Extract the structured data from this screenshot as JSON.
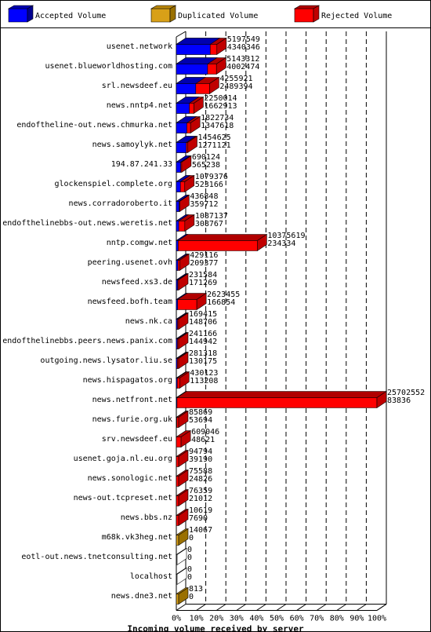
{
  "chart_data": {
    "type": "bar",
    "xlabel": "Incoming volume received by server",
    "legend": [
      "Accepted Volume",
      "Duplicated Volume",
      "Rejected Volume"
    ],
    "colors": {
      "accepted": "#0000ff",
      "accepted_top": "#0000b0",
      "accepted_side": "#000090",
      "duplicated": "#d8a018",
      "duplicated_top": "#b8860b",
      "duplicated_side": "#9a7000",
      "rejected": "#ff0000",
      "rejected_top": "#b00000",
      "rejected_side": "#c00000"
    },
    "xticks": [
      "0%",
      "10%",
      "20%",
      "30%",
      "40%",
      "50%",
      "60%",
      "70%",
      "80%",
      "90%",
      "100%"
    ],
    "xlim": [
      0,
      25702552
    ],
    "rows": [
      {
        "server": "usenet.network",
        "kind": "accepted",
        "total": 5197549,
        "accepted": 4340346,
        "line1": "5197549",
        "line2": "4340346"
      },
      {
        "server": "usenet.blueworldhosting.com",
        "kind": "accepted",
        "total": 5143312,
        "accepted": 4002474,
        "line1": "5143312",
        "line2": "4002474"
      },
      {
        "server": "srl.newsdeef.eu",
        "kind": "accepted",
        "total": 4255921,
        "accepted": 2489394,
        "line1": "4255921",
        "line2": "2489394"
      },
      {
        "server": "news.nntp4.net",
        "kind": "accepted",
        "total": 2250014,
        "accepted": 1662913,
        "line1": "2250014",
        "line2": "1662913"
      },
      {
        "server": "endoftheline-out.news.chmurka.net",
        "kind": "accepted",
        "total": 1822734,
        "accepted": 1347618,
        "line1": "1822734",
        "line2": "1347618"
      },
      {
        "server": "news.samoylyk.net",
        "kind": "accepted",
        "total": 1454625,
        "accepted": 1271121,
        "line1": "1454625",
        "line2": "1271121"
      },
      {
        "server": "194.87.241.33",
        "kind": "accepted",
        "total": 690124,
        "accepted": 565238,
        "line1": "690124",
        "line2": "565238"
      },
      {
        "server": "glockenspiel.complete.org",
        "kind": "accepted",
        "total": 1079376,
        "accepted": 523166,
        "line1": "1079376",
        "line2": "523166"
      },
      {
        "server": "news.corradoroberto.it",
        "kind": "accepted",
        "total": 436848,
        "accepted": 359712,
        "line1": "436848",
        "line2": "359712"
      },
      {
        "server": "endofthelinebbs-out.news.weretis.net",
        "kind": "accepted",
        "total": 1087137,
        "accepted": 308767,
        "line1": "1087137",
        "line2": "308767"
      },
      {
        "server": "nntp.comgw.net",
        "kind": "accepted",
        "total": 10375619,
        "accepted": 234334,
        "line1": "10375619",
        "line2": "234334"
      },
      {
        "server": "peering.usenet.ovh",
        "kind": "accepted",
        "total": 429116,
        "accepted": 209377,
        "line1": "429116",
        "line2": "209377"
      },
      {
        "server": "newsfeed.xs3.de",
        "kind": "accepted",
        "total": 231584,
        "accepted": 171269,
        "line1": "231584",
        "line2": "171269"
      },
      {
        "server": "newsfeed.bofh.team",
        "kind": "accepted",
        "total": 2623455,
        "accepted": 166854,
        "line1": "2623455",
        "line2": "166854"
      },
      {
        "server": "news.nk.ca",
        "kind": "accepted",
        "total": 169415,
        "accepted": 148706,
        "line1": "169415",
        "line2": "148706"
      },
      {
        "server": "endofthelinebbs.peers.news.panix.com",
        "kind": "accepted",
        "total": 241166,
        "accepted": 144942,
        "line1": "241166",
        "line2": "144942"
      },
      {
        "server": "outgoing.news.lysator.liu.se",
        "kind": "accepted",
        "total": 281318,
        "accepted": 130175,
        "line1": "281318",
        "line2": "130175"
      },
      {
        "server": "news.hispagatos.org",
        "kind": "accepted",
        "total": 430123,
        "accepted": 113208,
        "line1": "430123",
        "line2": "113208"
      },
      {
        "server": "news.netfront.net",
        "kind": "accepted",
        "total": 25702552,
        "accepted": 83836,
        "line1": "25702552",
        "line2": "83836"
      },
      {
        "server": "news.furie.org.uk",
        "kind": "accepted",
        "total": 85869,
        "accepted": 53694,
        "line1": "85869",
        "line2": "53694"
      },
      {
        "server": "srv.newsdeef.eu",
        "kind": "accepted",
        "total": 609046,
        "accepted": 48621,
        "line1": "609046",
        "line2": "48621"
      },
      {
        "server": "usenet.goja.nl.eu.org",
        "kind": "accepted",
        "total": 94794,
        "accepted": 39190,
        "line1": "94794",
        "line2": "39190"
      },
      {
        "server": "news.sonologic.net",
        "kind": "accepted",
        "total": 75588,
        "accepted": 24826,
        "line1": "75588",
        "line2": "24826"
      },
      {
        "server": "news-out.tcpreset.net",
        "kind": "accepted",
        "total": 76359,
        "accepted": 21012,
        "line1": "76359",
        "line2": "21012"
      },
      {
        "server": "news.bbs.nz",
        "kind": "accepted",
        "total": 10619,
        "accepted": 7690,
        "line1": "10619",
        "line2": "7690"
      },
      {
        "server": "m68k.vk3heg.net",
        "kind": "duplicated",
        "total": 14067,
        "accepted": 0,
        "line1": "14067",
        "line2": "0"
      },
      {
        "server": "eotl-out.news.tnetconsulting.net",
        "kind": "none",
        "total": 0,
        "accepted": 0,
        "line1": "0",
        "line2": "0"
      },
      {
        "server": "localhost",
        "kind": "none",
        "total": 0,
        "accepted": 0,
        "line1": "0",
        "line2": "0"
      },
      {
        "server": "news.dne3.net",
        "kind": "duplicated",
        "total": 813,
        "accepted": 0,
        "line1": "813",
        "line2": "0"
      }
    ]
  }
}
